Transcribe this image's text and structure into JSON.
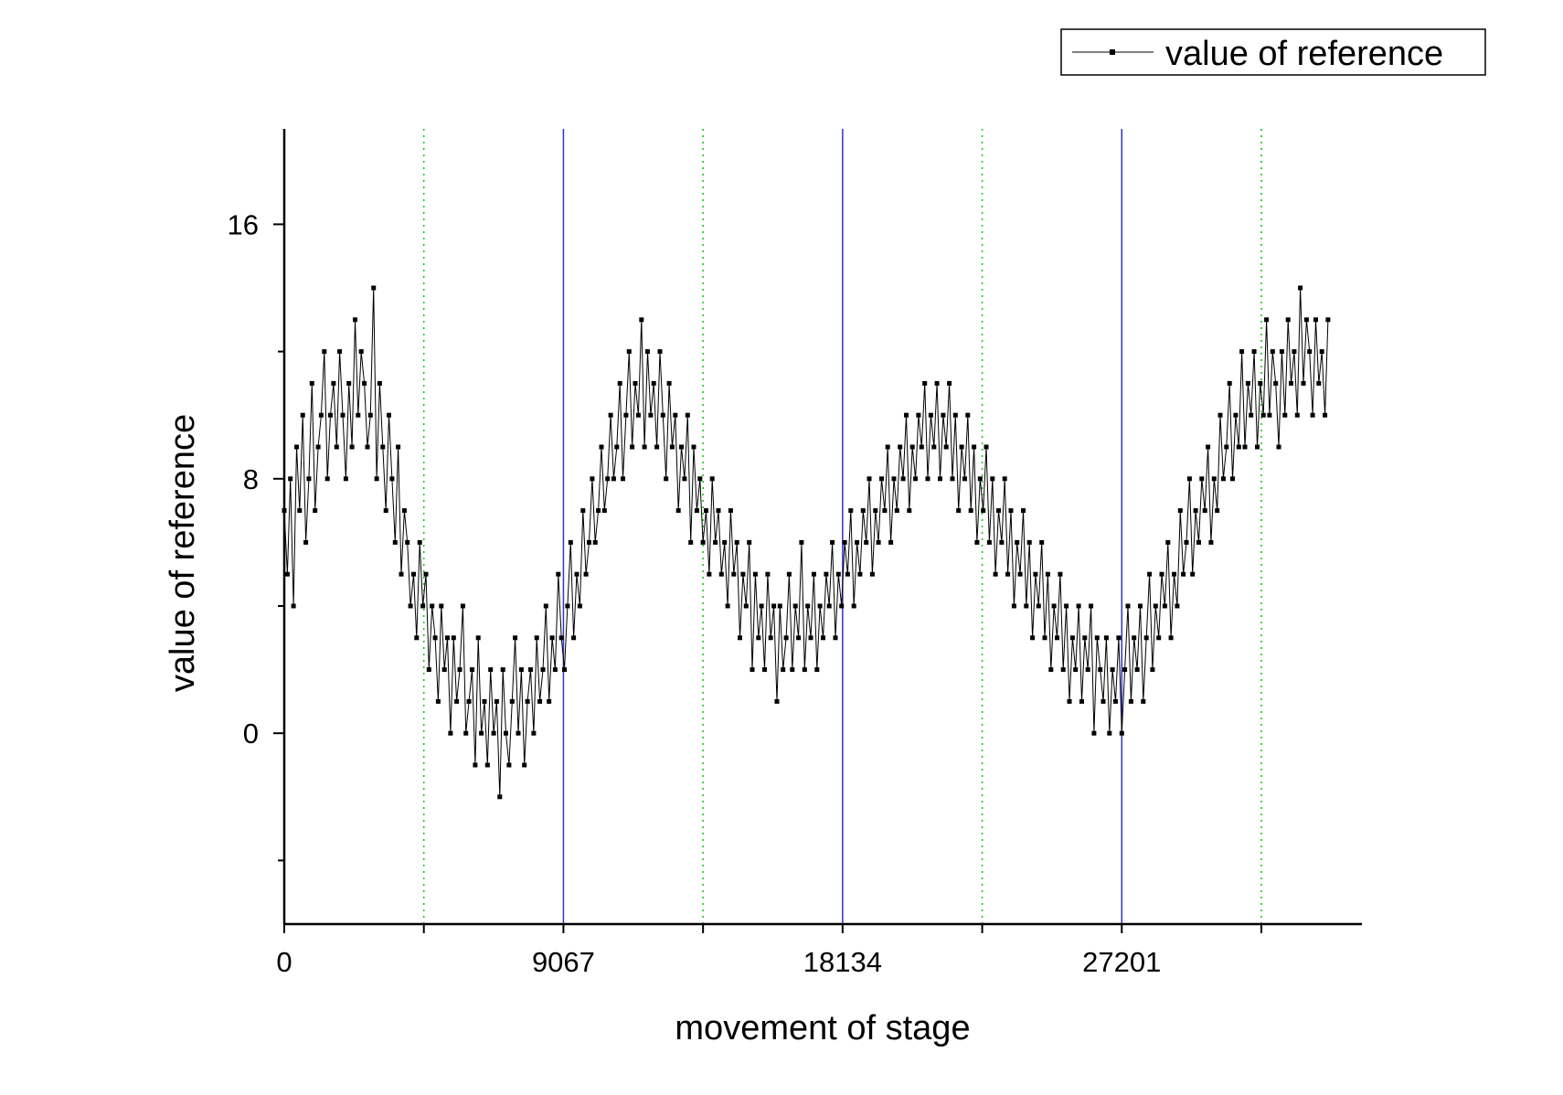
{
  "chart_data": {
    "type": "line",
    "title": "",
    "xlabel": "movement of stage",
    "ylabel": "value of reference",
    "xlim": [
      0,
      35000
    ],
    "ylim": [
      -6,
      19
    ],
    "x_ticks": [
      0,
      9067,
      18134,
      27201
    ],
    "x_minor_ticks": [
      4533.5,
      13600.5,
      22667.5,
      31734.5
    ],
    "x_tick_labels": [
      "0",
      "9067",
      "18134",
      "27201"
    ],
    "y_ticks": [
      0,
      8,
      16
    ],
    "y_minor_ticks": [
      -4,
      4,
      12
    ],
    "y_tick_labels": [
      "0",
      "8",
      "16"
    ],
    "legend": {
      "position": "top-right",
      "entries": [
        "value of reference"
      ]
    },
    "reference_lines": {
      "solid_blue_at_x": [
        9067,
        18134,
        27201
      ],
      "dotted_green_at_x": [
        4533.5,
        13600.5,
        22667.5,
        31734.5
      ],
      "solid_color": "#3333cc",
      "dotted_color": "#00cc00"
    },
    "series": [
      {
        "name": "value of reference",
        "color": "#000000",
        "marker": "square",
        "x_start": 0,
        "x_step": 100,
        "values": [
          7,
          5,
          8,
          4,
          9,
          7,
          10,
          6,
          8,
          11,
          7,
          9,
          10,
          12,
          8,
          10,
          11,
          9,
          12,
          10,
          8,
          11,
          9,
          13,
          10,
          12,
          11,
          9,
          10,
          14,
          8,
          11,
          9,
          7,
          10,
          8,
          6,
          9,
          5,
          7,
          6,
          4,
          5,
          3,
          6,
          4,
          5,
          2,
          4,
          3,
          1,
          4,
          2,
          3,
          0,
          3,
          1,
          2,
          4,
          0,
          1,
          2,
          -1,
          3,
          0,
          1,
          -1,
          2,
          0,
          1,
          -2,
          2,
          0,
          -1,
          1,
          3,
          0,
          2,
          -1,
          1,
          2,
          0,
          3,
          1,
          2,
          4,
          1,
          3,
          2,
          5,
          3,
          2,
          4,
          6,
          3,
          5,
          4,
          7,
          5,
          6,
          8,
          6,
          7,
          9,
          7,
          8,
          10,
          8,
          9,
          11,
          8,
          10,
          12,
          9,
          11,
          10,
          13,
          9,
          12,
          10,
          11,
          9,
          12,
          10,
          8,
          11,
          9,
          10,
          7,
          9,
          8,
          10,
          6,
          9,
          7,
          8,
          6,
          7,
          5,
          8,
          6,
          7,
          5,
          6,
          4,
          7,
          5,
          6,
          3,
          5,
          4,
          6,
          2,
          5,
          3,
          4,
          2,
          5,
          3,
          4,
          1,
          4,
          2,
          3,
          5,
          2,
          4,
          3,
          6,
          2,
          4,
          3,
          5,
          2,
          4,
          3,
          5,
          4,
          6,
          3,
          5,
          4,
          6,
          5,
          7,
          4,
          6,
          5,
          7,
          6,
          8,
          5,
          7,
          6,
          8,
          7,
          9,
          6,
          8,
          7,
          9,
          8,
          10,
          7,
          9,
          8,
          10,
          9,
          11,
          8,
          10,
          9,
          11,
          8,
          10,
          9,
          11,
          8,
          10,
          7,
          9,
          8,
          10,
          7,
          9,
          6,
          8,
          7,
          9,
          6,
          8,
          5,
          7,
          6,
          8,
          5,
          7,
          4,
          6,
          5,
          7,
          4,
          6,
          3,
          5,
          4,
          6,
          3,
          5,
          2,
          4,
          3,
          5,
          2,
          4,
          1,
          3,
          2,
          4,
          1,
          3,
          2,
          4,
          0,
          3,
          2,
          1,
          3,
          0,
          2,
          1,
          3,
          0,
          2,
          4,
          1,
          3,
          2,
          4,
          1,
          3,
          5,
          2,
          4,
          3,
          5,
          4,
          6,
          3,
          5,
          4,
          7,
          5,
          6,
          8,
          5,
          7,
          6,
          8,
          7,
          9,
          6,
          8,
          7,
          10,
          8,
          9,
          11,
          8,
          10,
          9,
          12,
          9,
          11,
          10,
          12,
          9,
          11,
          10,
          13,
          10,
          12,
          11,
          9,
          12,
          10,
          13,
          11,
          12,
          10,
          14,
          11,
          13,
          12,
          10,
          13,
          11,
          12,
          10,
          13
        ]
      }
    ]
  }
}
